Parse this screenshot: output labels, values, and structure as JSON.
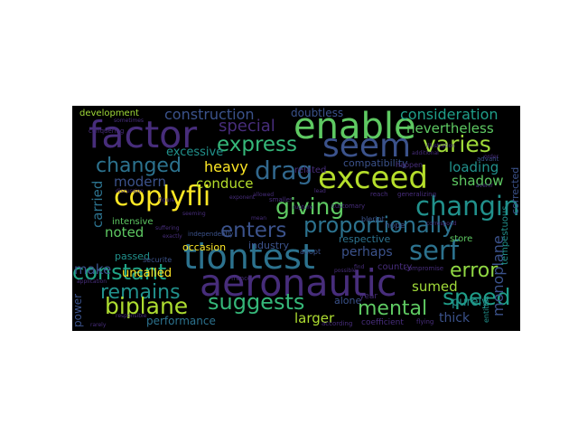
{
  "wordcloud": {
    "background": "#000000",
    "words": [
      {
        "text": "enable",
        "color": "#5ec962"
      },
      {
        "text": "factor",
        "color": "#472d7b"
      },
      {
        "text": "seem",
        "color": "#3b528b"
      },
      {
        "text": "exceed",
        "color": "#b5de2b"
      },
      {
        "text": "tiontest",
        "color": "#2c728e"
      },
      {
        "text": "aeronautic",
        "color": "#472d7b"
      },
      {
        "text": "express",
        "color": "#35b779"
      },
      {
        "text": "coplyfli",
        "color": "#fde725"
      },
      {
        "text": "drag",
        "color": "#31688e"
      },
      {
        "text": "changing",
        "color": "#21918c"
      },
      {
        "text": "varies",
        "color": "#a0da39"
      },
      {
        "text": "giving",
        "color": "#5ec962"
      },
      {
        "text": "enters",
        "color": "#3b528b"
      },
      {
        "text": "proportionally",
        "color": "#2c728e"
      },
      {
        "text": "serf",
        "color": "#2c728e"
      },
      {
        "text": "constant",
        "color": "#20a486"
      },
      {
        "text": "suggests",
        "color": "#35b779"
      },
      {
        "text": "remains",
        "color": "#21918c"
      },
      {
        "text": "biplane",
        "color": "#addc30"
      },
      {
        "text": "mental",
        "color": "#5ec962"
      },
      {
        "text": "speed",
        "color": "#1f9e89"
      },
      {
        "text": "error",
        "color": "#90d743"
      },
      {
        "text": "changed",
        "color": "#2c728e"
      },
      {
        "text": "construction",
        "color": "#3b528b"
      },
      {
        "text": "consideration",
        "color": "#1f9e89"
      },
      {
        "text": "nevertheless",
        "color": "#5ec962"
      },
      {
        "text": "special",
        "color": "#472d7b"
      },
      {
        "text": "heavy",
        "color": "#fde725"
      },
      {
        "text": "conduce",
        "color": "#b5de2b"
      },
      {
        "text": "loading",
        "color": "#21918c"
      },
      {
        "text": "shadow",
        "color": "#5ec962"
      },
      {
        "text": "modern",
        "color": "#3b528b"
      },
      {
        "text": "excessive",
        "color": "#21918c"
      },
      {
        "text": "carried",
        "color": "#2c728e"
      },
      {
        "text": "noted",
        "color": "#5ec962"
      },
      {
        "text": "perhaps",
        "color": "#3b528b"
      },
      {
        "text": "monoplane",
        "color": "#3b528b"
      },
      {
        "text": "make",
        "color": "#3b528b"
      },
      {
        "text": "uncalled",
        "color": "#fde725"
      },
      {
        "text": "sumed",
        "color": "#a0da39"
      },
      {
        "text": "larger",
        "color": "#addc30"
      },
      {
        "text": "thick",
        "color": "#3b528b"
      },
      {
        "text": "performance",
        "color": "#2c728e"
      },
      {
        "text": "power",
        "color": "#3b528b"
      },
      {
        "text": "development",
        "color": "#a0da39"
      },
      {
        "text": "doubtless",
        "color": "#3b528b"
      },
      {
        "text": "compatibility",
        "color": "#3b528b"
      },
      {
        "text": "related",
        "color": "#472d7b"
      },
      {
        "text": "respective",
        "color": "#2c728e"
      },
      {
        "text": "industry",
        "color": "#3b528b"
      },
      {
        "text": "occasion",
        "color": "#fde725"
      },
      {
        "text": "passed",
        "color": "#21918c"
      },
      {
        "text": "intensive",
        "color": "#5ec962"
      },
      {
        "text": "store",
        "color": "#5ec962"
      },
      {
        "text": "purely",
        "color": "#21918c"
      },
      {
        "text": "tempestuous",
        "color": "#21918c"
      },
      {
        "text": "corrected",
        "color": "#3b528b"
      },
      {
        "text": "country",
        "color": "#472d7b"
      },
      {
        "text": "alone",
        "color": "#3b528b"
      },
      {
        "text": "year",
        "color": "#472d7b"
      },
      {
        "text": "coefficient",
        "color": "#472d7b"
      },
      {
        "text": "according",
        "color": "#472d7b"
      },
      {
        "text": "flying",
        "color": "#472d7b"
      },
      {
        "text": "entities",
        "color": "#21918c"
      },
      {
        "text": "hope",
        "color": "#3b528b"
      },
      {
        "text": "independently",
        "color": "#3b528b"
      },
      {
        "text": "france",
        "color": "#472d7b"
      },
      {
        "text": "adopt",
        "color": "#3b528b"
      },
      {
        "text": "blerjot",
        "color": "#3b528b"
      },
      {
        "text": "securite",
        "color": "#3b528b"
      },
      {
        "text": "compromise",
        "color": "#472d7b"
      },
      {
        "text": "customary",
        "color": "#472d7b"
      },
      {
        "text": "smaller",
        "color": "#472d7b"
      },
      {
        "text": "reach",
        "color": "#472d7b"
      },
      {
        "text": "happen",
        "color": "#472d7b"
      },
      {
        "text": "generalizing",
        "color": "#472d7b"
      },
      {
        "text": "conquering",
        "color": "#472d7b"
      },
      {
        "text": "sometimes",
        "color": "#472d7b"
      },
      {
        "text": "advant",
        "color": "#3b528b"
      },
      {
        "text": "additional",
        "color": "#472d7b"
      },
      {
        "text": "illustration",
        "color": "#472d7b"
      },
      {
        "text": "seeming",
        "color": "#472d7b"
      },
      {
        "text": "suffering",
        "color": "#472d7b"
      },
      {
        "text": "discussion",
        "color": "#472d7b"
      },
      {
        "text": "application",
        "color": "#472d7b"
      },
      {
        "text": "figure",
        "color": "#472d7b"
      },
      {
        "text": "mean",
        "color": "#472d7b"
      },
      {
        "text": "rupture",
        "color": "#472d7b"
      },
      {
        "text": "lead",
        "color": "#472d7b"
      },
      {
        "text": "find",
        "color": "#472d7b"
      },
      {
        "text": "rarely",
        "color": "#472d7b"
      },
      {
        "text": "possible",
        "color": "#472d7b"
      },
      {
        "text": "allowed",
        "color": "#472d7b"
      },
      {
        "text": "exponent",
        "color": "#472d7b"
      },
      {
        "text": "avenir",
        "color": "#472d7b"
      },
      {
        "text": "order",
        "color": "#472d7b"
      },
      {
        "text": "correspond",
        "color": "#472d7b"
      },
      {
        "text": "exactly",
        "color": "#472d7b"
      },
      {
        "text": "responsible",
        "color": "#472d7b"
      }
    ]
  }
}
